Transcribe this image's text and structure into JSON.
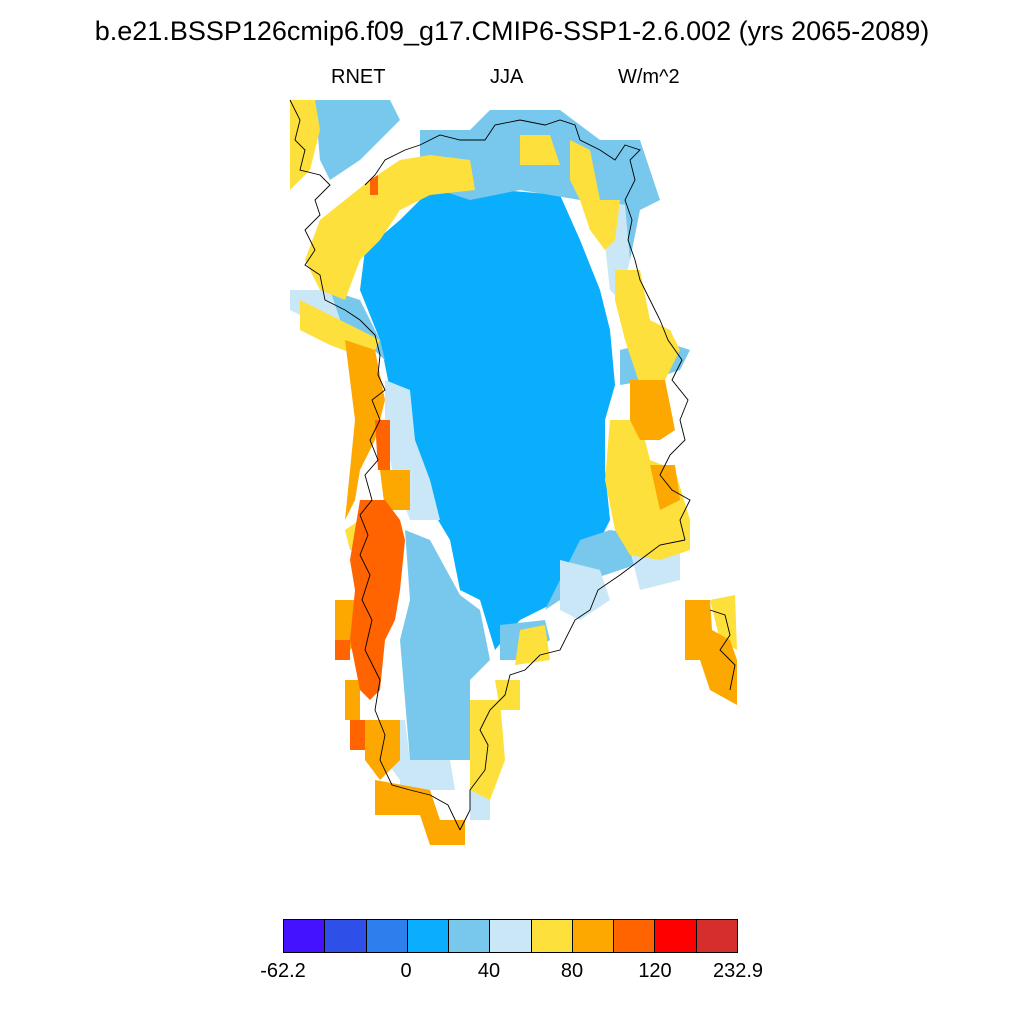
{
  "title": "b.e21.BSSP126cmip6.f09_g17.CMIP6-SSP1-2.6.002 (yrs 2065-2089)",
  "subtitle": {
    "left": "RNET",
    "center": "JJA",
    "right": "W/m^2"
  },
  "colorbar": {
    "colors": [
      "#4412ff",
      "#2e4fe8",
      "#2e7fee",
      "#0aaefc",
      "#78c8ee",
      "#c9e7f7",
      "#fde03c",
      "#fda800",
      "#ff6400",
      "#ff0000",
      "#d62d2d"
    ],
    "labels": [
      "-62.2",
      "0",
      "40",
      "80",
      "120",
      "232.9"
    ]
  },
  "map": {
    "region": "Greenland",
    "field": "RNET"
  }
}
